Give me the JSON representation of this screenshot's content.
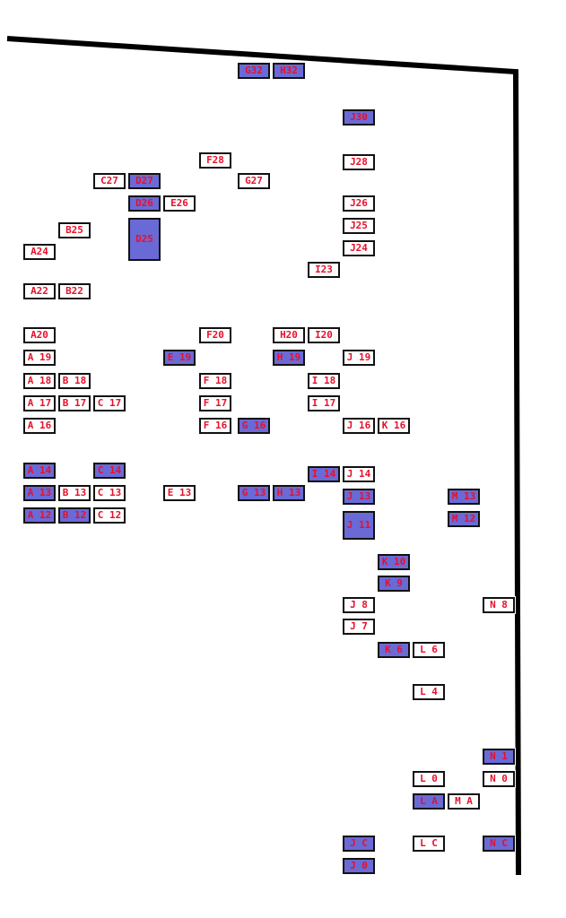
{
  "colors": {
    "empty": "#ffffff",
    "filled": "#6a6ad6",
    "text": "#e8102a",
    "border": "#111111"
  },
  "cells": [
    {
      "label": "G32",
      "filled": true
    },
    {
      "label": "H32",
      "filled": true
    },
    {
      "label": "J30",
      "filled": true
    },
    {
      "label": "F28",
      "filled": false
    },
    {
      "label": "J28",
      "filled": false
    },
    {
      "label": "C27",
      "filled": false
    },
    {
      "label": "D27",
      "filled": true
    },
    {
      "label": "G27",
      "filled": false
    },
    {
      "label": "D26",
      "filled": true
    },
    {
      "label": "E26",
      "filled": false
    },
    {
      "label": "J26",
      "filled": false
    },
    {
      "label": "B25",
      "filled": false
    },
    {
      "label": "D25",
      "filled": true
    },
    {
      "label": "J25",
      "filled": false
    },
    {
      "label": "A24",
      "filled": false
    },
    {
      "label": "J24",
      "filled": false
    },
    {
      "label": "I23",
      "filled": false
    },
    {
      "label": "A22",
      "filled": false
    },
    {
      "label": "B22",
      "filled": false
    },
    {
      "label": "A20",
      "filled": false
    },
    {
      "label": "F20",
      "filled": false
    },
    {
      "label": "H20",
      "filled": false
    },
    {
      "label": "I20",
      "filled": false
    },
    {
      "label": "A 19",
      "filled": false
    },
    {
      "label": "E 19",
      "filled": true
    },
    {
      "label": "H 19",
      "filled": true
    },
    {
      "label": "J 19",
      "filled": false
    },
    {
      "label": "A 18",
      "filled": false
    },
    {
      "label": "B 18",
      "filled": false
    },
    {
      "label": "F 18",
      "filled": false
    },
    {
      "label": "I 18",
      "filled": false
    },
    {
      "label": "A 17",
      "filled": false
    },
    {
      "label": "B 17",
      "filled": false
    },
    {
      "label": "C 17",
      "filled": false
    },
    {
      "label": "F 17",
      "filled": false
    },
    {
      "label": "I 17",
      "filled": false
    },
    {
      "label": "A 16",
      "filled": false
    },
    {
      "label": "F 16",
      "filled": false
    },
    {
      "label": "G 16",
      "filled": true
    },
    {
      "label": "J 16",
      "filled": false
    },
    {
      "label": "K 16",
      "filled": false
    },
    {
      "label": "A 14",
      "filled": true
    },
    {
      "label": "C 14",
      "filled": true
    },
    {
      "label": "I 14",
      "filled": true
    },
    {
      "label": "J 14",
      "filled": false
    },
    {
      "label": "A 13",
      "filled": true
    },
    {
      "label": "B 13",
      "filled": false
    },
    {
      "label": "C 13",
      "filled": false
    },
    {
      "label": "E 13",
      "filled": false
    },
    {
      "label": "G 13",
      "filled": true
    },
    {
      "label": "H 13",
      "filled": true
    },
    {
      "label": "J 13",
      "filled": true
    },
    {
      "label": "M 13",
      "filled": true
    },
    {
      "label": "A 12",
      "filled": true
    },
    {
      "label": "B 12",
      "filled": true
    },
    {
      "label": "C 12",
      "filled": false
    },
    {
      "label": "J 11",
      "filled": true
    },
    {
      "label": "M 12",
      "filled": true
    },
    {
      "label": "K 10",
      "filled": true
    },
    {
      "label": "K 9",
      "filled": true
    },
    {
      "label": "J 8",
      "filled": false
    },
    {
      "label": "N 8",
      "filled": false
    },
    {
      "label": "J 7",
      "filled": false
    },
    {
      "label": "K 6",
      "filled": true
    },
    {
      "label": "L 6",
      "filled": false
    },
    {
      "label": "L 4",
      "filled": false
    },
    {
      "label": "N 1",
      "filled": true
    },
    {
      "label": "L 0",
      "filled": false
    },
    {
      "label": "N 0",
      "filled": false
    },
    {
      "label": "L A",
      "filled": true
    },
    {
      "label": "M A",
      "filled": false
    },
    {
      "label": "J C",
      "filled": true
    },
    {
      "label": "L C",
      "filled": false
    },
    {
      "label": "N C",
      "filled": true
    },
    {
      "label": "J 0",
      "filled": true
    }
  ]
}
